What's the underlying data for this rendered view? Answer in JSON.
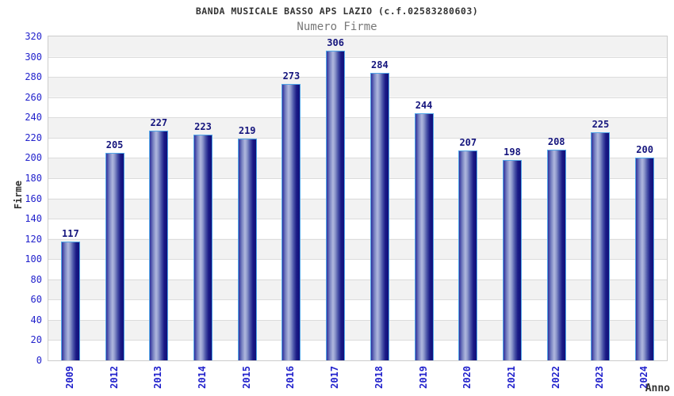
{
  "chart_data": {
    "type": "bar",
    "title": "BANDA MUSICALE BASSO APS LAZIO (c.f.02583280603)",
    "subtitle": "Numero Firme",
    "xlabel": "Anno",
    "ylabel": "Firme",
    "categories": [
      "2009",
      "2012",
      "2013",
      "2014",
      "2015",
      "2016",
      "2017",
      "2018",
      "2019",
      "2020",
      "2021",
      "2022",
      "2023",
      "2024"
    ],
    "values": [
      117,
      205,
      227,
      223,
      219,
      273,
      306,
      284,
      244,
      207,
      198,
      208,
      225,
      200
    ],
    "ylim": [
      0,
      320
    ],
    "ytick_step": 20,
    "grid": true,
    "value_labels": true,
    "legend": "none"
  },
  "colors": {
    "bar_dark": "#10107a",
    "bar_mid": "#4a54a8",
    "bar_highlight": "#b0b8de",
    "bar_border": "#52a7e8",
    "tick_text": "#2222cc",
    "value_text": "#15157d",
    "title_text": "#333333",
    "subtitle_text": "#777777",
    "band_gray": "#f2f2f2",
    "gridline": "#dcdcdc",
    "plot_border": "#cccccc"
  }
}
